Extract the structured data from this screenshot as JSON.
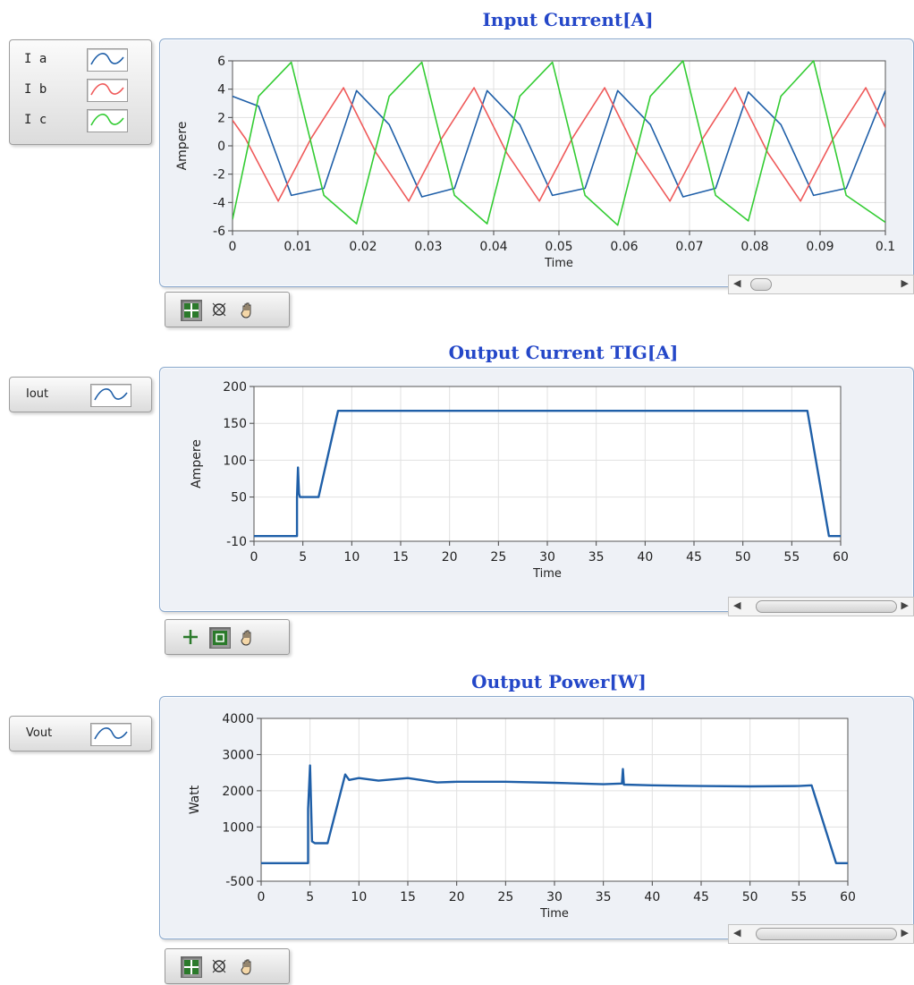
{
  "charts": [
    {
      "title": "Input Current[A]",
      "ylabel": "Ampere",
      "xlabel": "Time",
      "legend": [
        {
          "label": "I a",
          "color": "#1f5fa8"
        },
        {
          "label": "I b",
          "color": "#ef5a5a"
        },
        {
          "label": "I c",
          "color": "#33cc33"
        }
      ],
      "palette_active_tool": "cursor-crosshair"
    },
    {
      "title": "Output Current TIG[A]",
      "ylabel": "Ampere",
      "xlabel": "Time",
      "legend": [
        {
          "label": "Iout",
          "color": "#1f5fa8"
        }
      ],
      "palette_active_tool": "zoom"
    },
    {
      "title": "Output Power[W]",
      "ylabel": "Watt",
      "xlabel": "Time",
      "legend": [
        {
          "label": "Vout",
          "color": "#1f5fa8"
        }
      ],
      "palette_active_tool": "cursor-crosshair"
    }
  ],
  "chart_data": [
    {
      "type": "line",
      "title": "Input Current[A]",
      "xlabel": "Time",
      "ylabel": "Ampere",
      "xlim": [
        0,
        0.1
      ],
      "ylim": [
        -6,
        6
      ],
      "xticks": [
        "0",
        "0.01",
        "0.02",
        "0.03",
        "0.04",
        "0.05",
        "0.06",
        "0.07",
        "0.08",
        "0.09",
        "0.1"
      ],
      "yticks": [
        "6",
        "4",
        "2",
        "0",
        "-2",
        "-4",
        "-6"
      ],
      "grid": true,
      "series": [
        {
          "name": "I a",
          "color": "#1f5fa8",
          "x": [
            0,
            0.004,
            0.009,
            0.014,
            0.019,
            0.024,
            0.029,
            0.034,
            0.039,
            0.044,
            0.049,
            0.054,
            0.059,
            0.064,
            0.069,
            0.074,
            0.079,
            0.084,
            0.089,
            0.094,
            0.1
          ],
          "y": [
            3.5,
            2.8,
            -3.5,
            -3.0,
            3.9,
            1.5,
            -3.6,
            -3.0,
            3.9,
            1.5,
            -3.5,
            -3.0,
            3.9,
            1.5,
            -3.6,
            -3.0,
            3.8,
            1.5,
            -3.5,
            -3.0,
            3.9
          ]
        },
        {
          "name": "I b",
          "color": "#ef5a5a",
          "x": [
            0,
            0.002,
            0.007,
            0.012,
            0.017,
            0.022,
            0.027,
            0.032,
            0.037,
            0.042,
            0.047,
            0.052,
            0.057,
            0.062,
            0.067,
            0.072,
            0.077,
            0.082,
            0.087,
            0.092,
            0.097,
            0.1
          ],
          "y": [
            1.8,
            0.5,
            -3.9,
            0.5,
            4.1,
            -0.5,
            -3.9,
            0.5,
            4.1,
            -0.5,
            -3.9,
            0.5,
            4.1,
            -0.5,
            -3.9,
            0.5,
            4.1,
            -0.5,
            -3.9,
            0.5,
            4.1,
            1.3
          ]
        },
        {
          "name": "I c",
          "color": "#33cc33",
          "x": [
            0,
            0.004,
            0.009,
            0.014,
            0.019,
            0.024,
            0.029,
            0.034,
            0.039,
            0.044,
            0.049,
            0.054,
            0.059,
            0.064,
            0.069,
            0.074,
            0.079,
            0.084,
            0.089,
            0.094,
            0.1
          ],
          "y": [
            -5.2,
            3.5,
            5.9,
            -3.5,
            -5.5,
            3.5,
            5.9,
            -3.5,
            -5.5,
            3.5,
            5.9,
            -3.5,
            -5.6,
            3.5,
            6.0,
            -3.5,
            -5.3,
            3.5,
            6.0,
            -3.5,
            -5.4
          ]
        }
      ]
    },
    {
      "type": "line",
      "title": "Output Current TIG[A]",
      "xlabel": "Time",
      "ylabel": "Ampere",
      "xlim": [
        0,
        60
      ],
      "ylim": [
        -10,
        200
      ],
      "xticks": [
        "0",
        "5",
        "10",
        "15",
        "20",
        "25",
        "30",
        "35",
        "40",
        "45",
        "50",
        "55",
        "60"
      ],
      "yticks": [
        "200",
        "150",
        "100",
        "50",
        "-10"
      ],
      "grid": true,
      "series": [
        {
          "name": "Iout",
          "color": "#1f5fa8",
          "x": [
            0,
            4.4,
            4.4,
            4.5,
            4.6,
            4.7,
            5.0,
            6.6,
            8.6,
            56.6,
            58.8,
            60
          ],
          "y": [
            -3,
            -3,
            50,
            90,
            55,
            50,
            50,
            50,
            167,
            167,
            -3,
            -3
          ]
        }
      ]
    },
    {
      "type": "line",
      "title": "Output Power[W]",
      "xlabel": "Time",
      "ylabel": "Watt",
      "xlim": [
        0,
        60
      ],
      "ylim": [
        -500,
        4000
      ],
      "xticks": [
        "0",
        "5",
        "10",
        "15",
        "20",
        "25",
        "30",
        "35",
        "40",
        "45",
        "50",
        "55",
        "60"
      ],
      "yticks": [
        "4000",
        "3000",
        "2000",
        "1000",
        "-500"
      ],
      "grid": true,
      "series": [
        {
          "name": "Vout",
          "color": "#1f5fa8",
          "x": [
            0,
            4.8,
            4.8,
            5.0,
            5.2,
            5.5,
            6.8,
            8.6,
            9.0,
            10,
            12,
            15,
            18,
            20,
            25,
            30,
            35,
            36.9,
            37.0,
            37.1,
            40,
            45,
            50,
            55,
            56.3,
            58.8,
            60
          ],
          "y": [
            0,
            0,
            1500,
            2700,
            600,
            550,
            550,
            2450,
            2300,
            2350,
            2280,
            2350,
            2230,
            2250,
            2250,
            2220,
            2180,
            2200,
            2600,
            2170,
            2150,
            2130,
            2120,
            2130,
            2150,
            0,
            0
          ]
        }
      ]
    }
  ]
}
